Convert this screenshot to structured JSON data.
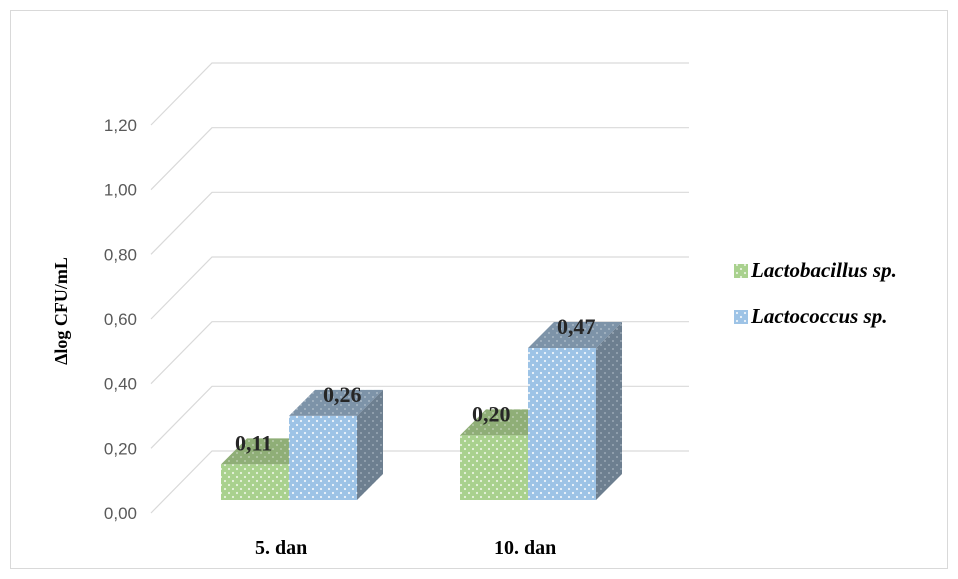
{
  "chart_data": {
    "type": "bar",
    "style": "3d-clustered-column",
    "categories": [
      "5. dan",
      "10. dan"
    ],
    "series": [
      {
        "name": "Lactobacillus sp.",
        "values": [
          0.11,
          0.2
        ],
        "color": "#a9d18e"
      },
      {
        "name": "Lactococcus sp.",
        "values": [
          0.26,
          0.47
        ],
        "color": "#9dc3e6"
      }
    ],
    "data_labels": [
      [
        "0,11",
        "0,20"
      ],
      [
        "0,26",
        "0,47"
      ]
    ],
    "ylabel": "Δlog CFU/mL",
    "xlabel": "",
    "ylim": [
      0,
      1.2
    ],
    "yticks": [
      0,
      0.2,
      0.4,
      0.6,
      0.8,
      1.0,
      1.2
    ],
    "ytick_labels": [
      "0,00",
      "0,20",
      "0,40",
      "0,60",
      "0,80",
      "1,00",
      "1,20"
    ],
    "grid": true,
    "legend_position": "right"
  }
}
